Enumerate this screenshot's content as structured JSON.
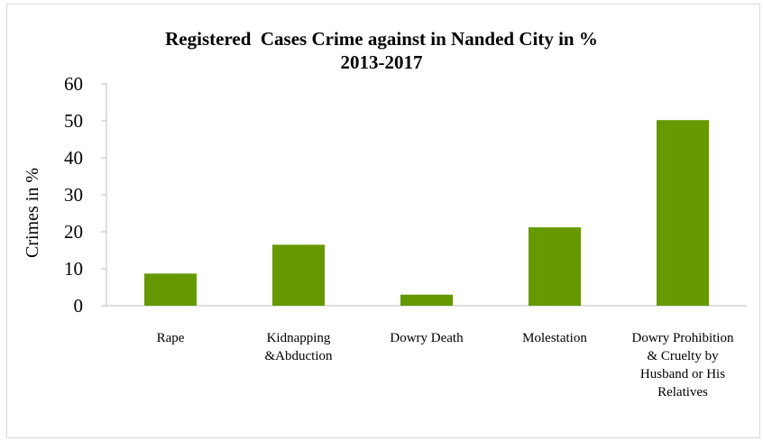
{
  "chart_data": {
    "type": "bar",
    "title": [
      "Registered  Cases Crime against in Nanded City in %",
      "2013-2017"
    ],
    "ylabel": "Crimes in %",
    "xlabel": "",
    "ylim": [
      0,
      60
    ],
    "yticks": [
      0,
      10,
      20,
      30,
      40,
      50,
      60
    ],
    "grid": false,
    "categories": [
      [
        "Rape"
      ],
      [
        "Kidnapping",
        "&Abduction"
      ],
      [
        "Dowry Death"
      ],
      [
        "Molestation"
      ],
      [
        "Dowry Prohibition",
        "& Cruelty by",
        "Husband or His",
        "Relatives"
      ]
    ],
    "values": [
      8.7,
      16.5,
      3.0,
      21.2,
      50.2
    ],
    "bar_color": "#669900"
  }
}
